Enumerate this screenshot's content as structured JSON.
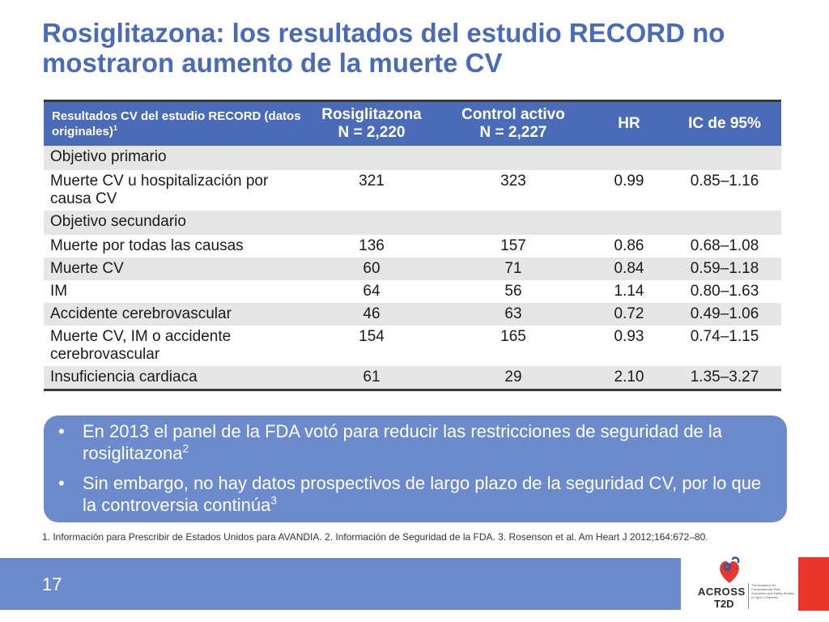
{
  "title": "Rosiglitazona: los resultados del estudio RECORD no mostraron aumento de la muerte CV",
  "table": {
    "headers": {
      "col1": "Resultados CV del estudio RECORD (datos originales)",
      "col1_sup": "1",
      "col2_line1": "Rosiglitazona",
      "col2_line2": "N = 2,220",
      "col3_line1": "Control activo",
      "col3_line2": "N = 2,227",
      "col4": "HR",
      "col5": "IC de 95%"
    },
    "section_primary": "Objetivo primario",
    "section_secondary": "Objetivo secundario",
    "rows": [
      {
        "label": "Muerte CV u hospitalización por causa CV",
        "rosi": "321",
        "control": "323",
        "hr": "0.99",
        "ci": "0.85–1.16"
      },
      {
        "label": "Muerte por todas las causas",
        "rosi": "136",
        "control": "157",
        "hr": "0.86",
        "ci": "0.68–1.08"
      },
      {
        "label": "Muerte CV",
        "rosi": "60",
        "control": "71",
        "hr": "0.84",
        "ci": "0.59–1.18"
      },
      {
        "label": "IM",
        "rosi": "64",
        "control": "56",
        "hr": "1.14",
        "ci": "0.80–1.63"
      },
      {
        "label": "Accidente cerebrovascular",
        "rosi": "46",
        "control": "63",
        "hr": "0.72",
        "ci": "0.49–1.06"
      },
      {
        "label": "Muerte CV, IM o accidente cerebrovascular",
        "rosi": "154",
        "control": "165",
        "hr": "0.93",
        "ci": "0.74–1.15"
      },
      {
        "label": "Insuficiencia cardiaca",
        "rosi": "61",
        "control": "29",
        "hr": "2.10",
        "ci": "1.35–3.27"
      }
    ]
  },
  "callout": {
    "bullet": "•",
    "items": [
      {
        "text": "En 2013 el panel de la FDA votó para reducir las restricciones de seguridad de la rosiglitazona",
        "sup": "2"
      },
      {
        "text": "Sin embargo, no hay datos prospectivos de largo plazo de la seguridad CV, por lo que la controversia continúa",
        "sup": "3"
      }
    ]
  },
  "footnote": "1. Información para Prescribir de Estados Unidos para AVANDIA. 2. Información de Seguridad de la FDA. 3. Rosenson et al. Am Heart J 2012;164:672–80.",
  "page_number": "17",
  "logo": {
    "line1": "ACROSS",
    "line2": "T2D",
    "tagline": "The Academy for Cardiovascular Risk, Outcomes and Safety Studies in Type 2 Diabetes"
  },
  "colors": {
    "title_blue": "#4a6bb8",
    "header_blue": "#4a6bb8",
    "callout_blue": "#6b8bcc",
    "row_shade": "#e6e6e6",
    "accent_red": "#e8362d"
  }
}
